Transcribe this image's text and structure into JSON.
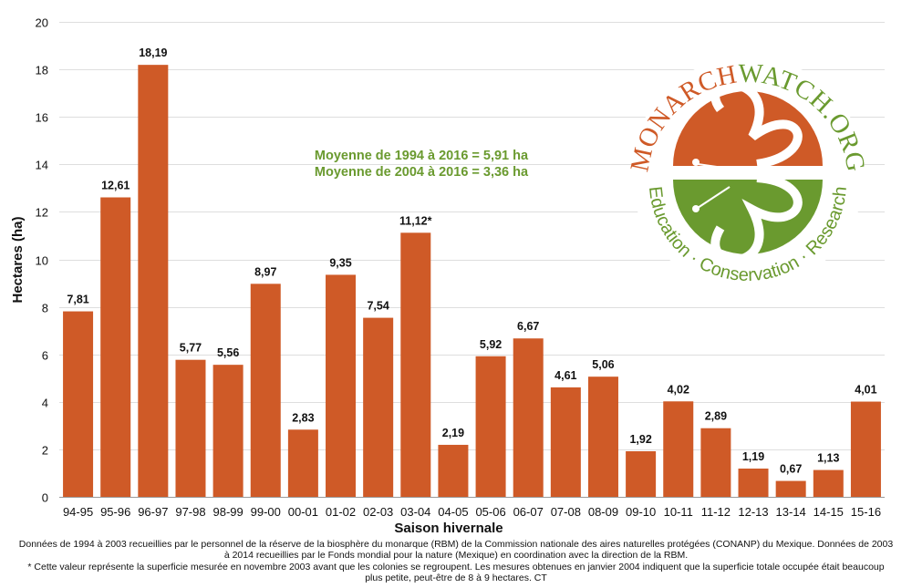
{
  "chart_data": {
    "type": "bar",
    "title": "",
    "xlabel": "Saison hivernale",
    "ylabel": "Hectares (ha)",
    "ylim": [
      0,
      20
    ],
    "yticks": [
      0,
      2,
      4,
      6,
      8,
      10,
      12,
      14,
      16,
      18,
      20
    ],
    "grid": true,
    "bar_color": "#cf5a27",
    "categories": [
      "94-95",
      "95-96",
      "96-97",
      "97-98",
      "98-99",
      "99-00",
      "00-01",
      "01-02",
      "02-03",
      "03-04",
      "04-05",
      "05-06",
      "06-07",
      "07-08",
      "08-09",
      "09-10",
      "10-11",
      "11-12",
      "12-13",
      "13-14",
      "14-15",
      "15-16"
    ],
    "values": [
      7.81,
      12.61,
      18.19,
      5.77,
      5.56,
      8.97,
      2.83,
      9.35,
      7.54,
      11.12,
      2.19,
      5.92,
      6.67,
      4.61,
      5.06,
      1.92,
      4.02,
      2.89,
      1.19,
      0.67,
      1.13,
      4.01
    ],
    "data_labels": [
      "7,81",
      "12,61",
      "18,19",
      "5,77",
      "5,56",
      "8,97",
      "2,83",
      "9,35",
      "7,54",
      "11,12*",
      "2,19",
      "5,92",
      "6,67",
      "4,61",
      "5,06",
      "1,92",
      "4,02",
      "2,89",
      "1,19",
      "0,67",
      "1,13",
      "4,01"
    ],
    "annotations": [
      "Moyenne de 1994 à 2016 = 5,91 ha",
      "Moyenne de 2004 à 2016 = 3,36 ha"
    ],
    "annotation_color": "#6a9a2f"
  },
  "logo": {
    "top_text_orange": "MONARCH",
    "top_text_green": "WATCH.ORG",
    "bottom_text": "Education · Conservation · Research",
    "orange": "#cf5a27",
    "green": "#6a9a2f"
  },
  "footnotes": {
    "line1": "Données de 1994 à 2003 recueillies par le personnel de la réserve de la biosphère du monarque (RBM) de la Commission nationale des aires naturelles protégées (CONANP) du Mexique. Données de 2003 à 2014 recueillies par le Fonds mondial pour la nature (Mexique) en coordination avec la direction de la RBM.",
    "line2": "* Cette valeur représente la superficie mesurée en novembre 2003 avant que les colonies se regroupent. Les mesures obtenues en janvier 2004 indiquent que la superficie totale occupée était beaucoup plus petite, peut-être de 8 à 9 hectares. CT"
  }
}
